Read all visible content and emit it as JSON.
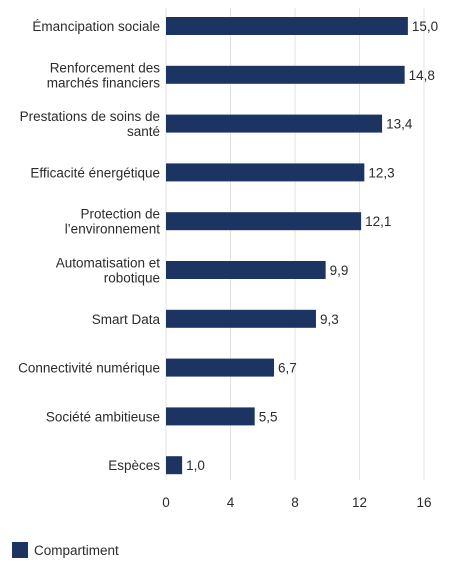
{
  "chart_data": {
    "type": "bar",
    "orientation": "horizontal",
    "categories": [
      [
        "Émancipation sociale"
      ],
      [
        "Renforcement des",
        "marchés financiers"
      ],
      [
        "Prestations de soins de",
        "santé"
      ],
      [
        "Efficacité énergétique"
      ],
      [
        "Protection de",
        "l’environnement"
      ],
      [
        "Automatisation et",
        "robotique"
      ],
      [
        "Smart Data"
      ],
      [
        "Connectivité numérique"
      ],
      [
        "Société ambitieuse"
      ],
      [
        "Espèces"
      ]
    ],
    "series": [
      {
        "name": "Compartiment",
        "values": [
          15.0,
          14.8,
          13.4,
          12.3,
          12.1,
          9.9,
          9.3,
          6.7,
          5.5,
          1.0
        ],
        "value_labels": [
          "15,0",
          "14,8",
          "13,4",
          "12,3",
          "12,1",
          "9,9",
          "9,3",
          "6,7",
          "5,5",
          "1,0"
        ]
      }
    ],
    "xlim": [
      0,
      16
    ],
    "xticks": [
      0,
      4,
      8,
      12,
      16
    ],
    "xtick_labels": [
      "0",
      "4",
      "8",
      "12",
      "16"
    ],
    "grid": "vertical",
    "legend_position": "bottom-left",
    "bar_color": "#1c3461",
    "grid_color": "#e3e3e3"
  }
}
